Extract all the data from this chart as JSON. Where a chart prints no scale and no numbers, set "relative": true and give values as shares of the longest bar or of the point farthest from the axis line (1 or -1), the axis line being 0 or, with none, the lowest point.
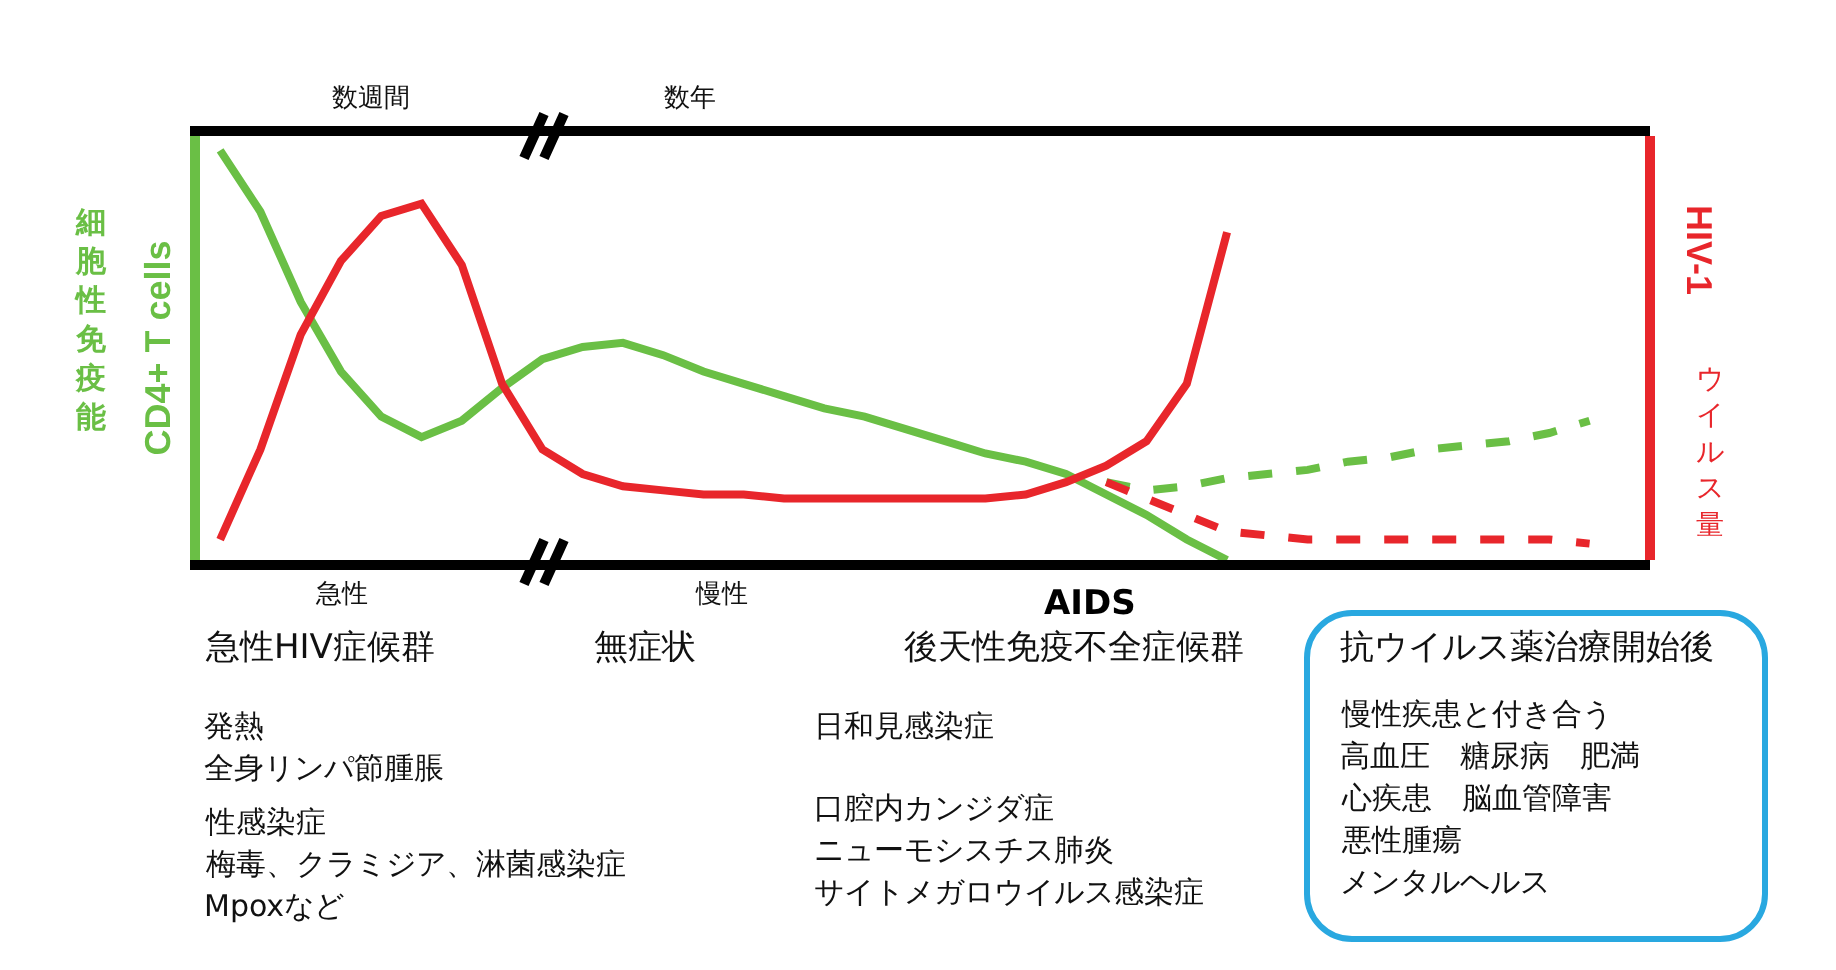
{
  "chart_data": {
    "type": "line",
    "relative": true,
    "ylabel": "CD4+ T cells",
    "y2label": "HIV-1",
    "grid": false,
    "categories": [
      null,
      null,
      null,
      null,
      null,
      null,
      null,
      null,
      null,
      null,
      null,
      null,
      null,
      null,
      null,
      null,
      null,
      null,
      null,
      null,
      null,
      null,
      null,
      null,
      null,
      null,
      null,
      null,
      null,
      null,
      null,
      null,
      null,
      null,
      null,
      null
    ],
    "series": [
      {
        "color": "#6abf45",
        "line_style": "solid",
        "values": [
          1.0,
          0.85,
          0.63,
          0.46,
          0.35,
          0.3,
          0.34,
          0.42,
          0.49,
          0.52,
          0.53,
          0.5,
          0.46,
          0.43,
          0.4,
          0.37,
          0.35,
          0.32,
          0.29,
          0.26,
          0.24,
          0.21,
          0.16,
          0.11,
          0.05,
          0,
          null,
          null,
          null,
          null,
          null,
          null,
          null,
          null,
          null,
          null
        ]
      },
      {
        "color": "#e8262b",
        "line_style": "solid",
        "values": [
          0.05,
          0.27,
          0.55,
          0.73,
          0.84,
          0.87,
          0.72,
          0.43,
          0.27,
          0.21,
          0.18,
          0.17,
          0.16,
          0.16,
          0.15,
          0.15,
          0.15,
          0.15,
          0.15,
          0.15,
          0.16,
          0.19,
          0.23,
          0.29,
          0.43,
          0.8,
          null,
          null,
          null,
          null,
          null,
          null,
          null,
          null,
          null,
          null
        ]
      },
      {
        "color": "#6abf45",
        "line_style": "dashed",
        "values": [
          null,
          null,
          null,
          null,
          null,
          null,
          null,
          null,
          null,
          null,
          null,
          null,
          null,
          null,
          null,
          null,
          null,
          null,
          null,
          null,
          null,
          null,
          0.19,
          0.17,
          0.18,
          0.2,
          0.21,
          0.22,
          0.24,
          0.25,
          0.27,
          0.28,
          0.29,
          0.31,
          0.34,
          null
        ]
      },
      {
        "color": "#e8262b",
        "line_style": "dashed",
        "values": [
          null,
          null,
          null,
          null,
          null,
          null,
          null,
          null,
          null,
          null,
          null,
          null,
          null,
          null,
          null,
          null,
          null,
          null,
          null,
          null,
          null,
          null,
          0.19,
          0.15,
          0.11,
          0.07,
          0.06,
          0.05,
          0.05,
          0.05,
          0.05,
          0.05,
          0.05,
          0.05,
          0.04,
          null
        ]
      }
    ],
    "annotations": [
      "数週間",
      "数年",
      "急性",
      "慢性",
      "AIDS",
      "急性HIV症候群",
      "無症状",
      "後天性免疫不全症候群",
      "抗ウイルス薬治療開始後",
      "発熱",
      "全身リンパ節腫脹",
      "性感染症",
      "梅毒、クラミジア、淋菌感染症",
      "Mpoxなど",
      "日和見感染症",
      "口腔内カンジダ症",
      "ニューモシスチス肺炎",
      "サイトメガロウイルス感染症",
      "慢性疾患と付き合う",
      "高血圧　糖尿病　肥満",
      "心疾患　脳血管障害",
      "悪性腫瘍",
      "メンタルヘルス",
      "細胞性免疫能",
      "ウイルス量"
    ]
  }
}
